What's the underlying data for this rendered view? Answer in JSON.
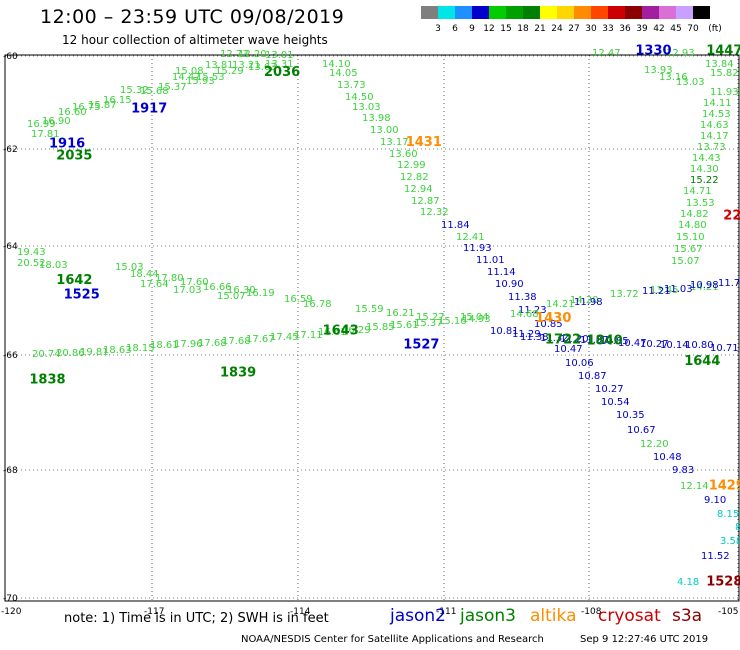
{
  "header": {
    "title": "12:00 – 23:59 UTC 09/08/2019",
    "subtitle": "12 hour collection of altimeter wave heights"
  },
  "colorbar": {
    "units": "(ft)",
    "labels": [
      "3",
      "6",
      "9",
      "12",
      "15",
      "18",
      "21",
      "24",
      "27",
      "30",
      "33",
      "36",
      "39",
      "42",
      "45",
      "70"
    ],
    "colors": [
      "#7f7f7f",
      "#00e5e5",
      "#1e90ff",
      "#0000cd",
      "#00cc00",
      "#00a000",
      "#008000",
      "#ffff00",
      "#ffd700",
      "#ff8c00",
      "#ff4500",
      "#cc0000",
      "#8b0000",
      "#a020a0",
      "#da70d6",
      "#c8a0ff",
      "#000000"
    ]
  },
  "axes": {
    "lat_labels": [
      "-60",
      "-62",
      "-64",
      "-66",
      "-68",
      "-70"
    ],
    "lon_labels": [
      "-120",
      "-117",
      "-114",
      "-111",
      "-108",
      "-105"
    ]
  },
  "satellites": {
    "jason2": {
      "name": "jason2",
      "color": "#0000cd"
    },
    "jason3": {
      "name": "jason3",
      "color": "#008000"
    },
    "altika": {
      "name": "altika",
      "color": "#ff8c00"
    },
    "cryosat": {
      "name": "cryosat",
      "color": "#cc0000"
    },
    "s3a": {
      "name": "s3a",
      "color": "#8b0000"
    }
  },
  "tracks": [
    {
      "color": "#3cd23c",
      "points": [
        [
          "16.99",
          27,
          127
        ],
        [
          "17.81",
          31,
          137
        ],
        [
          "16.90",
          42,
          124
        ],
        [
          "16.60",
          58,
          115
        ],
        [
          "16.75",
          72,
          110
        ],
        [
          "15.87",
          88,
          108
        ],
        [
          "16.15",
          103,
          103
        ],
        [
          "15.32",
          120,
          93
        ],
        [
          "15.68",
          140,
          94
        ],
        [
          "15.37",
          158,
          90
        ],
        [
          "14.47",
          172,
          80
        ],
        [
          "15.93",
          186,
          84
        ],
        [
          "15.08",
          175,
          74
        ],
        [
          "15.53",
          196,
          80
        ],
        [
          "13.81",
          205,
          68
        ],
        [
          "15.29",
          215,
          74
        ],
        [
          "12.20",
          238,
          57
        ],
        [
          "12.73",
          220,
          57
        ],
        [
          "13.21",
          232,
          68
        ],
        [
          "13.63",
          248,
          70
        ],
        [
          "13.31",
          265,
          67
        ],
        [
          "13.01",
          265,
          58
        ],
        [
          "14.10",
          322,
          67
        ],
        [
          "14.05",
          329,
          76
        ],
        [
          "13.73",
          337,
          88
        ],
        [
          "14.50",
          345,
          100
        ],
        [
          "13.03",
          352,
          110
        ],
        [
          "13.98",
          362,
          121
        ],
        [
          "13.00",
          370,
          133
        ],
        [
          "13.17",
          380,
          145
        ],
        [
          "13.60",
          389,
          157
        ],
        [
          "12.99",
          397,
          168
        ],
        [
          "12.82",
          400,
          180
        ],
        [
          "12.94",
          404,
          192
        ],
        [
          "12.87",
          411,
          204
        ],
        [
          "12.32",
          420,
          215
        ],
        [
          "12.41",
          456,
          240
        ]
      ]
    },
    {
      "color": "#0000cd",
      "points": [
        [
          "11.84",
          441,
          228
        ],
        [
          "11.93",
          463,
          251
        ],
        [
          "11.01",
          476,
          263
        ],
        [
          "11.14",
          487,
          275
        ],
        [
          "10.90",
          495,
          287
        ],
        [
          "11.38",
          508,
          300
        ],
        [
          "11.23",
          518,
          313
        ],
        [
          "10.85",
          534,
          327
        ],
        [
          "11.29",
          512,
          337
        ],
        [
          "10.81",
          490,
          334
        ],
        [
          "10.47",
          554,
          352
        ],
        [
          "10.06",
          565,
          366
        ],
        [
          "10.87",
          578,
          379
        ],
        [
          "10.27",
          595,
          392
        ],
        [
          "10.54",
          601,
          405
        ],
        [
          "10.35",
          616,
          418
        ],
        [
          "10.67",
          627,
          433
        ],
        [
          "10.48",
          653,
          460
        ],
        [
          "9.83",
          672,
          473
        ],
        [
          "9.10",
          704,
          503
        ],
        [
          "11.52",
          701,
          559
        ]
      ]
    },
    {
      "color": "#3cd23c",
      "points": [
        [
          "12.20",
          640,
          447
        ],
        [
          "12.14",
          680,
          489
        ],
        [
          "12.47",
          592,
          56
        ],
        [
          "12.93",
          666,
          56
        ],
        [
          "13.93",
          644,
          73
        ],
        [
          "13.16",
          659,
          80
        ],
        [
          "13.03",
          676,
          85
        ],
        [
          "13.84",
          705,
          67
        ],
        [
          "15.82",
          710,
          76
        ],
        [
          "11.93",
          710,
          95
        ],
        [
          "14.11",
          703,
          106
        ],
        [
          "14.53",
          702,
          117
        ],
        [
          "14.63",
          700,
          128
        ],
        [
          "14.17",
          700,
          139
        ],
        [
          "13.73",
          697,
          150
        ],
        [
          "14.43",
          692,
          161
        ],
        [
          "14.30",
          690,
          172
        ],
        [
          "14.71",
          683,
          194
        ],
        [
          "14.82",
          680,
          217
        ],
        [
          "14.80",
          678,
          228
        ],
        [
          "15.10",
          676,
          240
        ],
        [
          "15.67",
          674,
          252
        ],
        [
          "15.07",
          671,
          264
        ]
      ]
    },
    {
      "color": "#008000",
      "points": [
        [
          "15.22",
          690,
          183
        ]
      ]
    },
    {
      "color": "#3cd23c",
      "points": [
        [
          "13.53",
          686,
          206
        ]
      ]
    },
    {
      "color": "#3cd23c",
      "points": [
        [
          "19.43",
          17,
          255
        ],
        [
          "20.52",
          17,
          266
        ],
        [
          "18.03",
          39,
          268
        ],
        [
          "18.44",
          130,
          277
        ],
        [
          "17.80",
          155,
          281
        ],
        [
          "17.60",
          180,
          285
        ],
        [
          "16.66",
          203,
          290
        ],
        [
          "16.30",
          227,
          293
        ],
        [
          "16.19",
          246,
          296
        ],
        [
          "15.03",
          115,
          270
        ],
        [
          "17.64",
          140,
          287
        ],
        [
          "17.03",
          173,
          293
        ],
        [
          "15.07",
          217,
          299
        ],
        [
          "16.59",
          284,
          302
        ],
        [
          "16.78",
          303,
          307
        ],
        [
          "15.59",
          355,
          312
        ],
        [
          "16.21",
          386,
          316
        ],
        [
          "15.27",
          416,
          320
        ],
        [
          "15.04",
          460,
          320
        ],
        [
          "14.68",
          510,
          317
        ],
        [
          "14.21",
          546,
          307
        ],
        [
          "14.20",
          570,
          303
        ],
        [
          "13.72",
          610,
          297
        ],
        [
          "13.45",
          650,
          293
        ],
        [
          "14.21",
          690,
          290
        ]
      ]
    },
    {
      "color": "#0000cd",
      "points": [
        [
          "11.98",
          574,
          305
        ],
        [
          "11.21",
          642,
          294
        ],
        [
          "11.03",
          664,
          292
        ],
        [
          "10.98",
          690,
          288
        ],
        [
          "11.75",
          718,
          286
        ]
      ]
    },
    {
      "color": "#3cd23c",
      "points": [
        [
          "20.74",
          32,
          357
        ],
        [
          "20.86",
          56,
          356
        ],
        [
          "19.81",
          80,
          355
        ],
        [
          "18.63",
          103,
          353
        ],
        [
          "18.15",
          126,
          351
        ],
        [
          "18.61",
          150,
          348
        ],
        [
          "17.96",
          174,
          347
        ],
        [
          "17.68",
          198,
          346
        ],
        [
          "17.68",
          222,
          344
        ],
        [
          "17.67",
          246,
          342
        ],
        [
          "17.45",
          270,
          340
        ],
        [
          "17.11",
          294,
          338
        ],
        [
          "16.61",
          318,
          335
        ],
        [
          "16.29",
          342,
          333
        ],
        [
          "15.85",
          366,
          330
        ],
        [
          "15.61",
          390,
          328
        ],
        [
          "15.37",
          414,
          326
        ],
        [
          "15.16",
          438,
          324
        ],
        [
          "14.93",
          462,
          322
        ]
      ]
    },
    {
      "color": "#0000cd",
      "points": [
        [
          "11.38",
          520,
          340
        ],
        [
          "11.32",
          540,
          341
        ],
        [
          "11.20",
          560,
          342
        ],
        [
          "11.07",
          580,
          343
        ],
        [
          "10.85",
          600,
          344
        ],
        [
          "10.47",
          618,
          346
        ],
        [
          "10.27",
          640,
          347
        ],
        [
          "10.14",
          660,
          348
        ],
        [
          "10.80",
          685,
          348
        ],
        [
          "10.71",
          710,
          351
        ]
      ]
    },
    {
      "color": "#00cccc",
      "points": [
        [
          "8.15",
          717,
          517
        ],
        [
          "3.58",
          720,
          544
        ],
        [
          "4.18",
          677,
          585
        ],
        [
          "8",
          735,
          530
        ]
      ]
    }
  ],
  "time_markers": [
    {
      "text": "1916",
      "color": "#0000cd",
      "lon": -119.1,
      "lat": -61.69
    },
    {
      "text": "2035",
      "color": "#008000",
      "lon": -118.95,
      "lat": -61.91
    },
    {
      "text": "1917",
      "color": "#0000cd",
      "lon": -117.42,
      "lat": -61.04
    },
    {
      "text": "2036",
      "color": "#008000",
      "lon": -114.7,
      "lat": -60.37
    },
    {
      "text": "1431",
      "color": "#ff8c00",
      "lon": -111.8,
      "lat": -61.66
    },
    {
      "text": "1330",
      "color": "#0000cd",
      "lon": -107.1,
      "lat": -59.97
    },
    {
      "text": "1447",
      "color": "#008000",
      "lon": -105.65,
      "lat": -59.97
    },
    {
      "text": "22",
      "color": "#cc0000",
      "lon": -105.3,
      "lat": -63.02
    },
    {
      "text": "1642",
      "color": "#008000",
      "lon": -118.95,
      "lat": -64.21
    },
    {
      "text": "1525",
      "color": "#0000cd",
      "lon": -118.8,
      "lat": -64.47
    },
    {
      "text": "1643",
      "color": "#008000",
      "lon": -113.5,
      "lat": -65.14
    },
    {
      "text": "1430",
      "color": "#ff8c00",
      "lon": -109.15,
      "lat": -64.91
    },
    {
      "text": "1722",
      "color": "#008000",
      "lon": -108.95,
      "lat": -65.3
    },
    {
      "text": "1840",
      "color": "#008000",
      "lon": -108.1,
      "lat": -65.32
    },
    {
      "text": "1644",
      "color": "#008000",
      "lon": -106.1,
      "lat": -65.7
    },
    {
      "text": "1527",
      "color": "#0000cd",
      "lon": -111.85,
      "lat": -65.4
    },
    {
      "text": "1839",
      "color": "#008000",
      "lon": -115.6,
      "lat": -65.91
    },
    {
      "text": "1838",
      "color": "#008000",
      "lon": -119.5,
      "lat": -66.04
    },
    {
      "text": "1429",
      "color": "#ff8c00",
      "lon": -105.6,
      "lat": -68.0
    },
    {
      "text": "1528",
      "color": "#8b0000",
      "lon": -105.65,
      "lat": -69.77
    }
  ],
  "footer": {
    "note": "note: 1) Time is in UTC; 2) SWH is in feet",
    "credit": "NOAA/NESDIS Center for Satellite Applications and Research",
    "timestamp": "Sep  9 12:27:46 UTC 2019"
  }
}
